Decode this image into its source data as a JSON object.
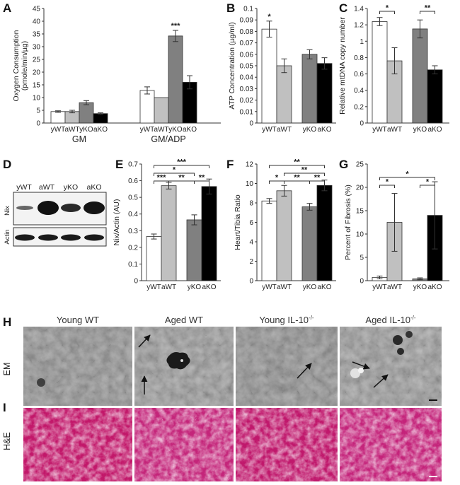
{
  "panel_letters": [
    "A",
    "B",
    "C",
    "D",
    "E",
    "F",
    "G",
    "H",
    "I"
  ],
  "colors": {
    "yWT": "#ffffff",
    "aWT": "#c0c0c0",
    "yKO": "#808080",
    "aKO": "#000000"
  },
  "chart_data": [
    {
      "id": "A",
      "type": "bar",
      "ylabel_lines": [
        "Oxygen Consumption",
        "(pmole/min/µg)"
      ],
      "ylim": [
        0,
        45
      ],
      "yticks": [
        0,
        5,
        10,
        15,
        20,
        25,
        30,
        35,
        40,
        45
      ],
      "groups": [
        {
          "label": "GM",
          "categories": [
            "yWT",
            "aWT",
            "yKO",
            "aKO"
          ],
          "values": [
            4.5,
            4.5,
            8.0,
            3.7
          ],
          "errors": [
            0.3,
            0.5,
            0.8,
            0.3
          ]
        },
        {
          "label": "GM/ADP",
          "categories": [
            "yWT",
            "aWT",
            "yKO",
            "aKO"
          ],
          "values": [
            12.8,
            10.0,
            34.2,
            16.0
          ],
          "errors": [
            1.4,
            0,
            2.2,
            2.6
          ]
        }
      ],
      "annotations": [
        {
          "group": 1,
          "bar": 2,
          "text": "***"
        }
      ]
    },
    {
      "id": "B",
      "type": "bar",
      "ylabel": "ATP Concentration (µg/ml)",
      "ylim": [
        0,
        0.1
      ],
      "yticks": [
        "0",
        "0.01",
        "0.02",
        "0.03",
        "0.04",
        "0.05",
        "0.06",
        "0.07",
        "0.08",
        "0.09",
        "0.1"
      ],
      "categories": [
        "yWT",
        "aWT",
        "yKO",
        "aKO"
      ],
      "values": [
        0.082,
        0.05,
        0.06,
        0.052
      ],
      "errors": [
        0.007,
        0.006,
        0.004,
        0.005
      ],
      "annotations": [
        {
          "bar": 0,
          "text": "*"
        }
      ]
    },
    {
      "id": "C",
      "type": "bar",
      "ylabel": "Relative mtDNA copy number",
      "ylim": [
        0,
        1.4
      ],
      "yticks": [
        "0",
        "0.2",
        "0.4",
        "0.6",
        "0.8",
        "1",
        "1.2",
        "1.4"
      ],
      "categories": [
        "yWT",
        "aWT",
        "yKO",
        "aKO"
      ],
      "values": [
        1.24,
        0.76,
        1.15,
        0.65
      ],
      "errors": [
        0.05,
        0.16,
        0.11,
        0.05
      ],
      "brackets": [
        {
          "from": 0,
          "to": 1,
          "level": 0,
          "text": "*"
        },
        {
          "from": 2,
          "to": 3,
          "level": 0,
          "text": "**"
        }
      ]
    },
    {
      "id": "E",
      "type": "bar",
      "ylabel": "Nix/Actin (AU)",
      "ylim": [
        0,
        0.7
      ],
      "yticks": [
        "0",
        "0.1",
        "0.2",
        "0.3",
        "0.4",
        "0.5",
        "0.6",
        "0.7"
      ],
      "categories": [
        "yWT",
        "aWT",
        "yKO",
        "aKO"
      ],
      "values": [
        0.265,
        0.57,
        0.365,
        0.565
      ],
      "errors": [
        0.015,
        0.02,
        0.03,
        0.045
      ],
      "brackets": [
        {
          "from": 0,
          "to": 3,
          "level": 3,
          "text": "***"
        },
        {
          "from": 0,
          "to": 2,
          "level": 2,
          "text": "*"
        },
        {
          "from": 0,
          "to": 1,
          "level": 1,
          "text": "***"
        },
        {
          "from": 1,
          "to": 2,
          "level": 1,
          "text": "**"
        },
        {
          "from": 2,
          "to": 3,
          "level": 1,
          "text": "**"
        }
      ]
    },
    {
      "id": "F",
      "type": "bar",
      "ylabel": "Heart/Tibia Ratio",
      "ylim": [
        0,
        12
      ],
      "yticks": [
        "0",
        "2",
        "4",
        "6",
        "8",
        "10",
        "12"
      ],
      "categories": [
        "yWT",
        "aWT",
        "yKO",
        "aKO"
      ],
      "values": [
        8.2,
        9.25,
        7.6,
        9.8
      ],
      "errors": [
        0.25,
        0.55,
        0.35,
        0.55
      ],
      "brackets": [
        {
          "from": 0,
          "to": 3,
          "level": 3,
          "text": "**"
        },
        {
          "from": 1,
          "to": 3,
          "level": 2,
          "text": "**"
        },
        {
          "from": 0,
          "to": 1,
          "level": 1,
          "text": "*"
        },
        {
          "from": 1,
          "to": 2,
          "level": 1,
          "text": "**"
        },
        {
          "from": 2,
          "to": 3,
          "level": 1,
          "text": "**"
        }
      ]
    },
    {
      "id": "G",
      "type": "bar",
      "ylabel": "Percent of Fibrosis (%)",
      "ylim": [
        0,
        25
      ],
      "yticks": [
        "0",
        "5",
        "10",
        "15",
        "20",
        "25"
      ],
      "categories": [
        "yWT",
        "aWT",
        "yKO",
        "aKO"
      ],
      "values": [
        0.7,
        12.5,
        0.4,
        14.0
      ],
      "errors": [
        0.3,
        6.2,
        0.2,
        7.2
      ],
      "brackets": [
        {
          "from": 0,
          "to": 3,
          "level": 2,
          "text": "*"
        },
        {
          "from": 0,
          "to": 1,
          "level": 1,
          "text": "*"
        },
        {
          "from": 2,
          "to": 3,
          "level": 1,
          "text": "*"
        }
      ]
    }
  ],
  "blot": {
    "lanes": [
      "yWT",
      "aWT",
      "yKO",
      "aKO"
    ],
    "rows": [
      "Nix",
      "Actin"
    ]
  },
  "images": {
    "columns": [
      "Young WT",
      "Aged WT",
      "Young IL-10",
      "Aged IL-10"
    ],
    "ko_superscript": "-/-",
    "rows": [
      "EM",
      "H&E"
    ]
  }
}
